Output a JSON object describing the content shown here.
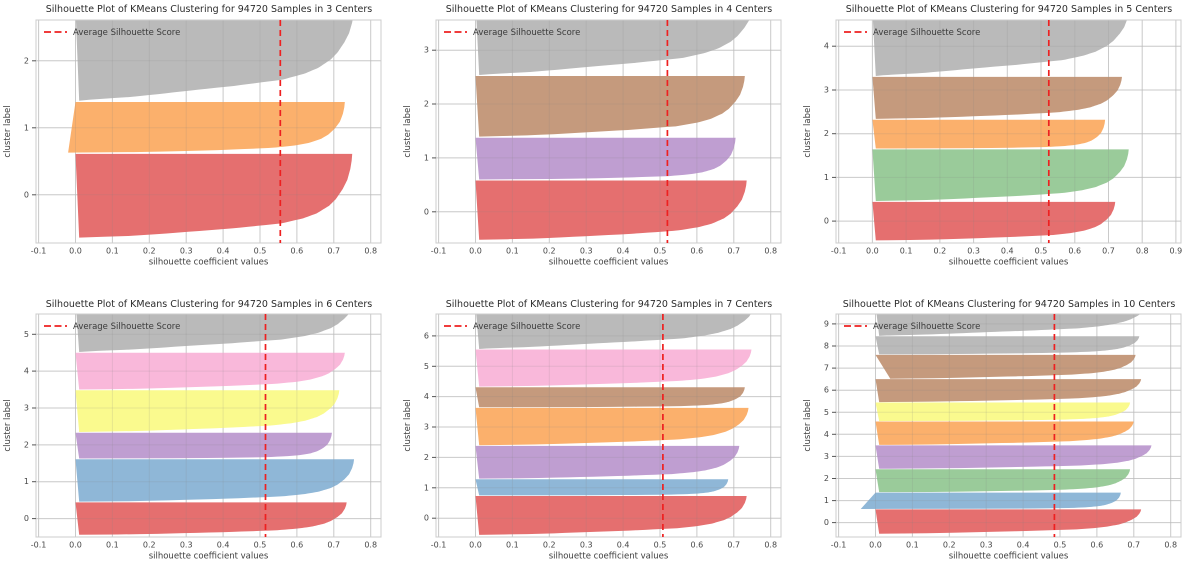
{
  "figure": {
    "rows": 2,
    "cols": 3,
    "background": "#ffffff"
  },
  "style": {
    "grid_color": "#d8d8d8",
    "spine_color": "#cccccc",
    "tick_label_color": "#474747",
    "axis_label_color": "#3d3d3d",
    "title_color": "#2b2b2b",
    "legend_text_color": "#3a3a3a",
    "avg_line_color": "#ee2020",
    "ytick_mark_color": "#555555"
  },
  "shape_profile": [
    [
      0,
      0
    ],
    [
      0.02,
      0.18
    ],
    [
      0.04,
      0.28
    ],
    [
      0.07,
      0.4
    ],
    [
      0.11,
      0.56
    ],
    [
      0.17,
      0.74
    ],
    [
      0.23,
      0.82
    ],
    [
      0.29,
      0.87
    ],
    [
      0.38,
      0.915
    ],
    [
      0.46,
      0.94
    ],
    [
      0.58,
      0.965
    ],
    [
      0.69,
      0.982
    ],
    [
      0.82,
      0.993
    ],
    [
      0.92,
      0.998
    ],
    [
      1,
      1
    ]
  ],
  "chart_data": [
    {
      "type": "area",
      "subtype": "silhouette",
      "title": "Silhouette Plot of KMeans Clustering for 94720 Samples in 3 Centers",
      "n_centers": 3,
      "n_samples": 94720,
      "xlabel": "silhouette coefficient values",
      "ylabel": "cluster label",
      "legend_label": "Average Silhouette Score",
      "legend_position": "upper left",
      "average_silhouette_score": 0.555,
      "grid": true,
      "xlim": [
        -0.107,
        0.828
      ],
      "xticks": [
        "-0.1",
        "0.0",
        "0.1",
        "0.2",
        "0.3",
        "0.4",
        "0.5",
        "0.6",
        "0.7",
        "0.8"
      ],
      "ylim": [
        -0.72,
        2.61
      ],
      "yticks": [
        0,
        1,
        2
      ],
      "clusters": [
        {
          "label": 0,
          "color": "#e56f6f",
          "y_range": [
            -0.64,
            0.61
          ],
          "max_silhouette": 0.75,
          "min_silhouette": 0.01,
          "shape": 1.0
        },
        {
          "label": 1,
          "color": "#fbb06c",
          "y_range": [
            0.63,
            1.385
          ],
          "max_silhouette": 0.73,
          "min_silhouette": -0.02,
          "shape": 0.75
        },
        {
          "label": 2,
          "color": "#bababa",
          "y_range": [
            1.405,
            2.78
          ],
          "max_silhouette": 0.755,
          "min_silhouette": 0.01,
          "shape": 1.2
        }
      ]
    },
    {
      "type": "area",
      "subtype": "silhouette",
      "title": "Silhouette Plot of KMeans Clustering for 94720 Samples in 4 Centers",
      "n_centers": 4,
      "n_samples": 94720,
      "xlabel": "silhouette coefficient values",
      "ylabel": "cluster label",
      "legend_label": "Average Silhouette Score",
      "legend_position": "upper left",
      "average_silhouette_score": 0.52,
      "grid": true,
      "xlim": [
        -0.107,
        0.828
      ],
      "xticks": [
        "-0.1",
        "0.0",
        "0.1",
        "0.2",
        "0.3",
        "0.4",
        "0.5",
        "0.6",
        "0.7",
        "0.8"
      ],
      "ylim": [
        -0.58,
        3.56
      ],
      "yticks": [
        0,
        1,
        2,
        3
      ],
      "clusters": [
        {
          "label": 0,
          "color": "#e56f6f",
          "y_range": [
            -0.52,
            0.58
          ],
          "max_silhouette": 0.735,
          "min_silhouette": 0.01,
          "shape": 0.95
        },
        {
          "label": 1,
          "color": "#bf9ed1",
          "y_range": [
            0.6,
            1.375
          ],
          "max_silhouette": 0.705,
          "min_silhouette": 0.01,
          "shape": 0.7
        },
        {
          "label": 2,
          "color": "#c59a7d",
          "y_range": [
            1.395,
            2.52
          ],
          "max_silhouette": 0.73,
          "min_silhouette": 0.01,
          "shape": 1.0
        },
        {
          "label": 3,
          "color": "#bababa",
          "y_range": [
            2.54,
            3.92
          ],
          "max_silhouette": 0.755,
          "min_silhouette": 0.01,
          "shape": 1.2
        }
      ]
    },
    {
      "type": "area",
      "subtype": "silhouette",
      "title": "Silhouette Plot of KMeans Clustering for 94720 Samples in 5 Centers",
      "n_centers": 5,
      "n_samples": 94720,
      "xlabel": "silhouette coefficient values",
      "ylabel": "cluster label",
      "legend_label": "Average Silhouette Score",
      "legend_position": "upper left",
      "average_silhouette_score": 0.523,
      "grid": true,
      "xlim": [
        -0.108,
        0.915
      ],
      "xticks": [
        "-0.1",
        "0.0",
        "0.1",
        "0.2",
        "0.3",
        "0.4",
        "0.5",
        "0.6",
        "0.7",
        "0.8",
        "0.9"
      ],
      "ylim": [
        -0.5,
        4.6
      ],
      "yticks": [
        0,
        1,
        2,
        3,
        4
      ],
      "clusters": [
        {
          "label": 0,
          "color": "#e56f6f",
          "y_range": [
            -0.44,
            0.44
          ],
          "max_silhouette": 0.72,
          "min_silhouette": 0.01,
          "shape": 0.9
        },
        {
          "label": 1,
          "color": "#9acb9a",
          "y_range": [
            0.46,
            1.64
          ],
          "max_silhouette": 0.76,
          "min_silhouette": 0.01,
          "shape": 0.95
        },
        {
          "label": 2,
          "color": "#fbb06c",
          "y_range": [
            1.66,
            2.32
          ],
          "max_silhouette": 0.69,
          "min_silhouette": 0.01,
          "shape": 0.6
        },
        {
          "label": 3,
          "color": "#c59a7d",
          "y_range": [
            2.34,
            3.3
          ],
          "max_silhouette": 0.74,
          "min_silhouette": 0.01,
          "shape": 0.95
        },
        {
          "label": 4,
          "color": "#bababa",
          "y_range": [
            3.32,
            4.82
          ],
          "max_silhouette": 0.76,
          "min_silhouette": 0.01,
          "shape": 1.25
        }
      ]
    },
    {
      "type": "area",
      "subtype": "silhouette",
      "title": "Silhouette Plot of KMeans Clustering for 94720 Samples in 6 Centers",
      "n_centers": 6,
      "n_samples": 94720,
      "xlabel": "silhouette coefficient values",
      "ylabel": "cluster label",
      "legend_label": "Average Silhouette Score",
      "legend_position": "upper left",
      "average_silhouette_score": 0.515,
      "grid": true,
      "xlim": [
        -0.107,
        0.828
      ],
      "xticks": [
        "-0.1",
        "0.0",
        "0.1",
        "0.2",
        "0.3",
        "0.4",
        "0.5",
        "0.6",
        "0.7",
        "0.8"
      ],
      "ylim": [
        -0.5,
        5.55
      ],
      "yticks": [
        0,
        1,
        2,
        3,
        4,
        5
      ],
      "clusters": [
        {
          "label": 0,
          "color": "#e56f6f",
          "y_range": [
            -0.44,
            0.44
          ],
          "max_silhouette": 0.735,
          "min_silhouette": 0.01,
          "shape": 0.9
        },
        {
          "label": 1,
          "color": "#8fb7d7",
          "y_range": [
            0.46,
            1.61
          ],
          "max_silhouette": 0.755,
          "min_silhouette": 0.01,
          "shape": 0.85
        },
        {
          "label": 2,
          "color": "#bf9ed1",
          "y_range": [
            1.63,
            2.33
          ],
          "max_silhouette": 0.695,
          "min_silhouette": 0.01,
          "shape": 0.6
        },
        {
          "label": 3,
          "color": "#fafa8e",
          "y_range": [
            2.35,
            3.48
          ],
          "max_silhouette": 0.715,
          "min_silhouette": 0.01,
          "shape": 0.95
        },
        {
          "label": 4,
          "color": "#f9b8da",
          "y_range": [
            3.5,
            4.5
          ],
          "max_silhouette": 0.73,
          "min_silhouette": 0.01,
          "shape": 0.95
        },
        {
          "label": 5,
          "color": "#bababa",
          "y_range": [
            4.52,
            5.92
          ],
          "max_silhouette": 0.755,
          "min_silhouette": 0.01,
          "shape": 1.25
        }
      ]
    },
    {
      "type": "area",
      "subtype": "silhouette",
      "title": "Silhouette Plot of KMeans Clustering for 94720 Samples in 7 Centers",
      "n_centers": 7,
      "n_samples": 94720,
      "xlabel": "silhouette coefficient values",
      "ylabel": "cluster label",
      "legend_label": "Average Silhouette Score",
      "legend_position": "upper left",
      "average_silhouette_score": 0.508,
      "grid": true,
      "xlim": [
        -0.107,
        0.828
      ],
      "xticks": [
        "-0.1",
        "0.0",
        "0.1",
        "0.2",
        "0.3",
        "0.4",
        "0.5",
        "0.6",
        "0.7",
        "0.8"
      ],
      "ylim": [
        -0.62,
        6.72
      ],
      "yticks": [
        0,
        1,
        2,
        3,
        4,
        5,
        6
      ],
      "clusters": [
        {
          "label": 0,
          "color": "#e56f6f",
          "y_range": [
            -0.55,
            0.73
          ],
          "max_silhouette": 0.735,
          "min_silhouette": 0.01,
          "shape": 1.0
        },
        {
          "label": 1,
          "color": "#8fb7d7",
          "y_range": [
            0.75,
            1.28
          ],
          "max_silhouette": 0.685,
          "min_silhouette": 0.01,
          "shape": 0.55
        },
        {
          "label": 2,
          "color": "#bf9ed1",
          "y_range": [
            1.3,
            2.38
          ],
          "max_silhouette": 0.715,
          "min_silhouette": 0.01,
          "shape": 0.9
        },
        {
          "label": 3,
          "color": "#fbb06c",
          "y_range": [
            2.4,
            3.63
          ],
          "max_silhouette": 0.74,
          "min_silhouette": 0.01,
          "shape": 0.95
        },
        {
          "label": 4,
          "color": "#c59a7d",
          "y_range": [
            3.65,
            4.31
          ],
          "max_silhouette": 0.73,
          "min_silhouette": 0.01,
          "shape": 0.6
        },
        {
          "label": 5,
          "color": "#f9b8da",
          "y_range": [
            4.33,
            5.55
          ],
          "max_silhouette": 0.748,
          "min_silhouette": 0.01,
          "shape": 0.95
        },
        {
          "label": 6,
          "color": "#bababa",
          "y_range": [
            5.57,
            7.0
          ],
          "max_silhouette": 0.755,
          "min_silhouette": 0.01,
          "shape": 1.25
        }
      ]
    },
    {
      "type": "area",
      "subtype": "silhouette",
      "title": "Silhouette Plot of KMeans Clustering for 94720 Samples in 10 Centers",
      "n_centers": 10,
      "n_samples": 94720,
      "xlabel": "silhouette coefficient values",
      "ylabel": "cluster label",
      "legend_label": "Average Silhouette Score",
      "legend_position": "upper left",
      "average_silhouette_score": 0.485,
      "grid": true,
      "xlim": [
        -0.107,
        0.828
      ],
      "xticks": [
        "-0.1",
        "0.0",
        "0.1",
        "0.2",
        "0.3",
        "0.4",
        "0.5",
        "0.6",
        "0.7",
        "0.8"
      ],
      "ylim": [
        -0.65,
        9.45
      ],
      "yticks": [
        0,
        1,
        2,
        3,
        4,
        5,
        6,
        7,
        8,
        9
      ],
      "clusters": [
        {
          "label": 0,
          "color": "#e56f6f",
          "y_range": [
            -0.5,
            0.6
          ],
          "max_silhouette": 0.72,
          "min_silhouette": 0.01,
          "shape": 1.0
        },
        {
          "label": 1,
          "color": "#8fb7d7",
          "y_range": [
            0.62,
            1.36
          ],
          "max_silhouette": 0.665,
          "min_silhouette": -0.04,
          "shape": 0.55
        },
        {
          "label": 2,
          "color": "#9acb9a",
          "y_range": [
            1.38,
            2.42
          ],
          "max_silhouette": 0.69,
          "min_silhouette": 0.01,
          "shape": 0.8
        },
        {
          "label": 3,
          "color": "#bf9ed1",
          "y_range": [
            2.44,
            3.5
          ],
          "max_silhouette": 0.748,
          "min_silhouette": 0.01,
          "shape": 0.9
        },
        {
          "label": 4,
          "color": "#fbb06c",
          "y_range": [
            3.52,
            4.58
          ],
          "max_silhouette": 0.7,
          "min_silhouette": 0.01,
          "shape": 0.95
        },
        {
          "label": 5,
          "color": "#fafa8e",
          "y_range": [
            4.6,
            5.44
          ],
          "max_silhouette": 0.69,
          "min_silhouette": 0.01,
          "shape": 0.7
        },
        {
          "label": 6,
          "color": "#c59a7d",
          "y_range": [
            5.46,
            6.5
          ],
          "max_silhouette": 0.72,
          "min_silhouette": 0.01,
          "shape": 0.95
        },
        {
          "label": 7,
          "color": "#c59a7d",
          "y_range": [
            6.52,
            7.6
          ],
          "max_silhouette": 0.705,
          "min_silhouette": 0.04,
          "shape": 1.0
        },
        {
          "label": 8,
          "color": "#bababa",
          "y_range": [
            7.62,
            8.44
          ],
          "max_silhouette": 0.715,
          "min_silhouette": 0.01,
          "shape": 0.8
        },
        {
          "label": 9,
          "color": "#bababa",
          "y_range": [
            8.46,
            9.85
          ],
          "max_silhouette": 0.735,
          "min_silhouette": 0.01,
          "shape": 1.25
        }
      ]
    }
  ]
}
